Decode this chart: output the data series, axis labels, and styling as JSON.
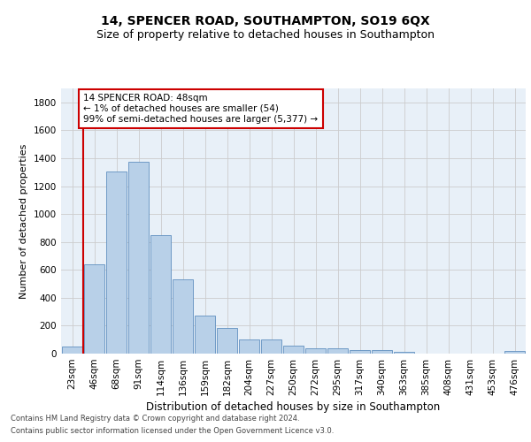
{
  "title": "14, SPENCER ROAD, SOUTHAMPTON, SO19 6QX",
  "subtitle": "Size of property relative to detached houses in Southampton",
  "xlabel": "Distribution of detached houses by size in Southampton",
  "ylabel": "Number of detached properties",
  "categories": [
    "23sqm",
    "46sqm",
    "68sqm",
    "91sqm",
    "114sqm",
    "136sqm",
    "159sqm",
    "182sqm",
    "204sqm",
    "227sqm",
    "250sqm",
    "272sqm",
    "295sqm",
    "317sqm",
    "340sqm",
    "363sqm",
    "385sqm",
    "408sqm",
    "431sqm",
    "453sqm",
    "476sqm"
  ],
  "values": [
    50,
    640,
    1305,
    1375,
    848,
    530,
    275,
    185,
    103,
    103,
    60,
    38,
    38,
    28,
    28,
    15,
    0,
    0,
    0,
    0,
    18
  ],
  "bar_color": "#b8d0e8",
  "bar_edge_color": "#6090c0",
  "grid_color": "#cccccc",
  "vline_color": "#cc0000",
  "annotation_text": "14 SPENCER ROAD: 48sqm\n← 1% of detached houses are smaller (54)\n99% of semi-detached houses are larger (5,377) →",
  "annotation_box_color": "#cc0000",
  "ylim": [
    0,
    1900
  ],
  "yticks": [
    0,
    200,
    400,
    600,
    800,
    1000,
    1200,
    1400,
    1600,
    1800
  ],
  "background_color": "#e8f0f8",
  "footer_line1": "Contains HM Land Registry data © Crown copyright and database right 2024.",
  "footer_line2": "Contains public sector information licensed under the Open Government Licence v3.0.",
  "title_fontsize": 10,
  "subtitle_fontsize": 9,
  "xlabel_fontsize": 8.5,
  "ylabel_fontsize": 8,
  "tick_fontsize": 7.5
}
